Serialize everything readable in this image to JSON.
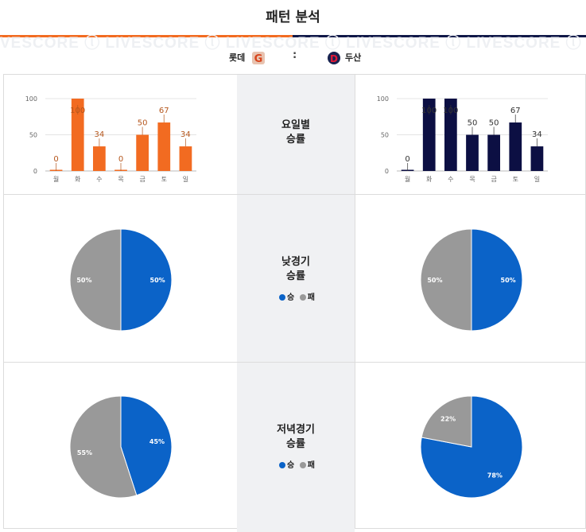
{
  "header": {
    "title": "패턴 분석",
    "watermark": "VESCORE ⓛ LIVESCORE ⓛ LIVESCORE ⓛ LIVESCORE ⓛ LIVESCORE ⓛ LIVESCORE ⓛ LIVESCORE",
    "home_color": "#f26b21",
    "away_color": "#101848"
  },
  "teams": {
    "home_name": "롯데",
    "away_name": "두산",
    "separator": ":",
    "home_logo_icon": "lotte-giants-logo",
    "away_logo_icon": "doosan-bears-logo"
  },
  "sections": [
    {
      "label_line1": "요일별",
      "label_line2": "승률"
    },
    {
      "label_line1": "낮경기",
      "label_line2": "승률",
      "legend_win": "승",
      "legend_loss": "패"
    },
    {
      "label_line1": "저녁경기",
      "label_line2": "승률",
      "legend_win": "승",
      "legend_loss": "패"
    }
  ],
  "colors": {
    "win": "#0b63c8",
    "loss": "#999999",
    "home_bar": "#f26b21",
    "away_bar": "#0c0f43"
  },
  "chart_data": [
    {
      "type": "bar",
      "team": "롯데",
      "categories": [
        "월",
        "화",
        "수",
        "목",
        "금",
        "토",
        "일"
      ],
      "values": [
        0,
        100,
        34,
        0,
        50,
        67,
        34
      ],
      "ylim": [
        0,
        100
      ],
      "yticks": [
        0,
        50,
        100
      ],
      "grid": true
    },
    {
      "type": "bar",
      "team": "두산",
      "categories": [
        "월",
        "화",
        "수",
        "목",
        "금",
        "토",
        "일"
      ],
      "values": [
        0,
        100,
        100,
        50,
        50,
        67,
        34
      ],
      "ylim": [
        0,
        100
      ],
      "yticks": [
        0,
        50,
        100
      ],
      "grid": true
    },
    {
      "type": "pie",
      "team": "롯데",
      "categories": [
        "승",
        "패"
      ],
      "values": [
        50,
        50
      ],
      "labels": [
        "50%",
        "50%"
      ]
    },
    {
      "type": "pie",
      "team": "두산",
      "categories": [
        "승",
        "패"
      ],
      "values": [
        50,
        50
      ],
      "labels": [
        "50%",
        "50%"
      ]
    },
    {
      "type": "pie",
      "team": "롯데",
      "categories": [
        "승",
        "패"
      ],
      "values": [
        45,
        55
      ],
      "labels": [
        "45%",
        "55%"
      ]
    },
    {
      "type": "pie",
      "team": "두산",
      "categories": [
        "승",
        "패"
      ],
      "values": [
        78,
        22
      ],
      "labels": [
        "78%",
        "22%"
      ]
    }
  ]
}
